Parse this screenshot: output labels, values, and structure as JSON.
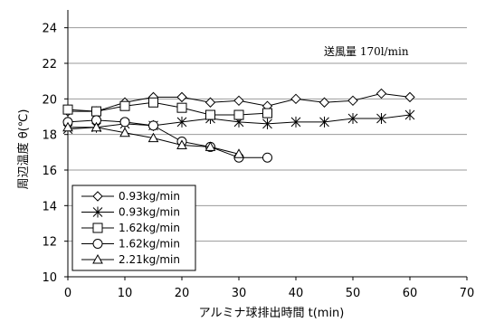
{
  "chart_data": {
    "type": "line",
    "title": "",
    "xlabel": "アルミナ球排出時間 t(min)",
    "ylabel": "周辺温度 θ(℃)",
    "xlim": [
      0,
      70
    ],
    "ylim": [
      10,
      25
    ],
    "xticks": [
      0,
      10,
      20,
      30,
      40,
      50,
      60,
      70
    ],
    "yticks": [
      10,
      12,
      14,
      16,
      18,
      20,
      22,
      24
    ],
    "grid": "horizontal",
    "legend_position": "bottom-left",
    "annotation": "送風量 170l/min",
    "series": [
      {
        "name": "0.93kg/min",
        "marker": "diamond",
        "x": [
          0,
          5,
          10,
          15,
          20,
          25,
          30,
          35,
          40,
          45,
          50,
          55,
          60
        ],
        "y": [
          19.3,
          19.3,
          19.8,
          20.1,
          20.1,
          19.8,
          19.9,
          19.6,
          20.0,
          19.8,
          19.9,
          20.3,
          20.1
        ]
      },
      {
        "name": "0.93kg/min",
        "marker": "asterisk",
        "x": [
          0,
          5,
          10,
          15,
          20,
          25,
          30,
          35,
          40,
          45,
          50,
          55,
          60
        ],
        "y": [
          18.3,
          18.4,
          18.6,
          18.5,
          18.7,
          18.9,
          18.7,
          18.6,
          18.7,
          18.7,
          18.9,
          18.9,
          19.1
        ]
      },
      {
        "name": "1.62kg/min",
        "marker": "square",
        "x": [
          0,
          5,
          10,
          15,
          20,
          25,
          30,
          35
        ],
        "y": [
          19.4,
          19.3,
          19.6,
          19.8,
          19.5,
          19.1,
          19.1,
          19.2
        ]
      },
      {
        "name": "1.62kg/min",
        "marker": "circle",
        "x": [
          0,
          5,
          10,
          15,
          20,
          25,
          30,
          35
        ],
        "y": [
          18.7,
          18.8,
          18.7,
          18.5,
          17.6,
          17.3,
          16.7,
          16.7
        ]
      },
      {
        "name": "2.21kg/min",
        "marker": "triangle",
        "x": [
          0,
          5,
          10,
          15,
          20,
          25,
          30
        ],
        "y": [
          18.4,
          18.4,
          18.1,
          17.8,
          17.4,
          17.3,
          16.9
        ]
      }
    ]
  }
}
